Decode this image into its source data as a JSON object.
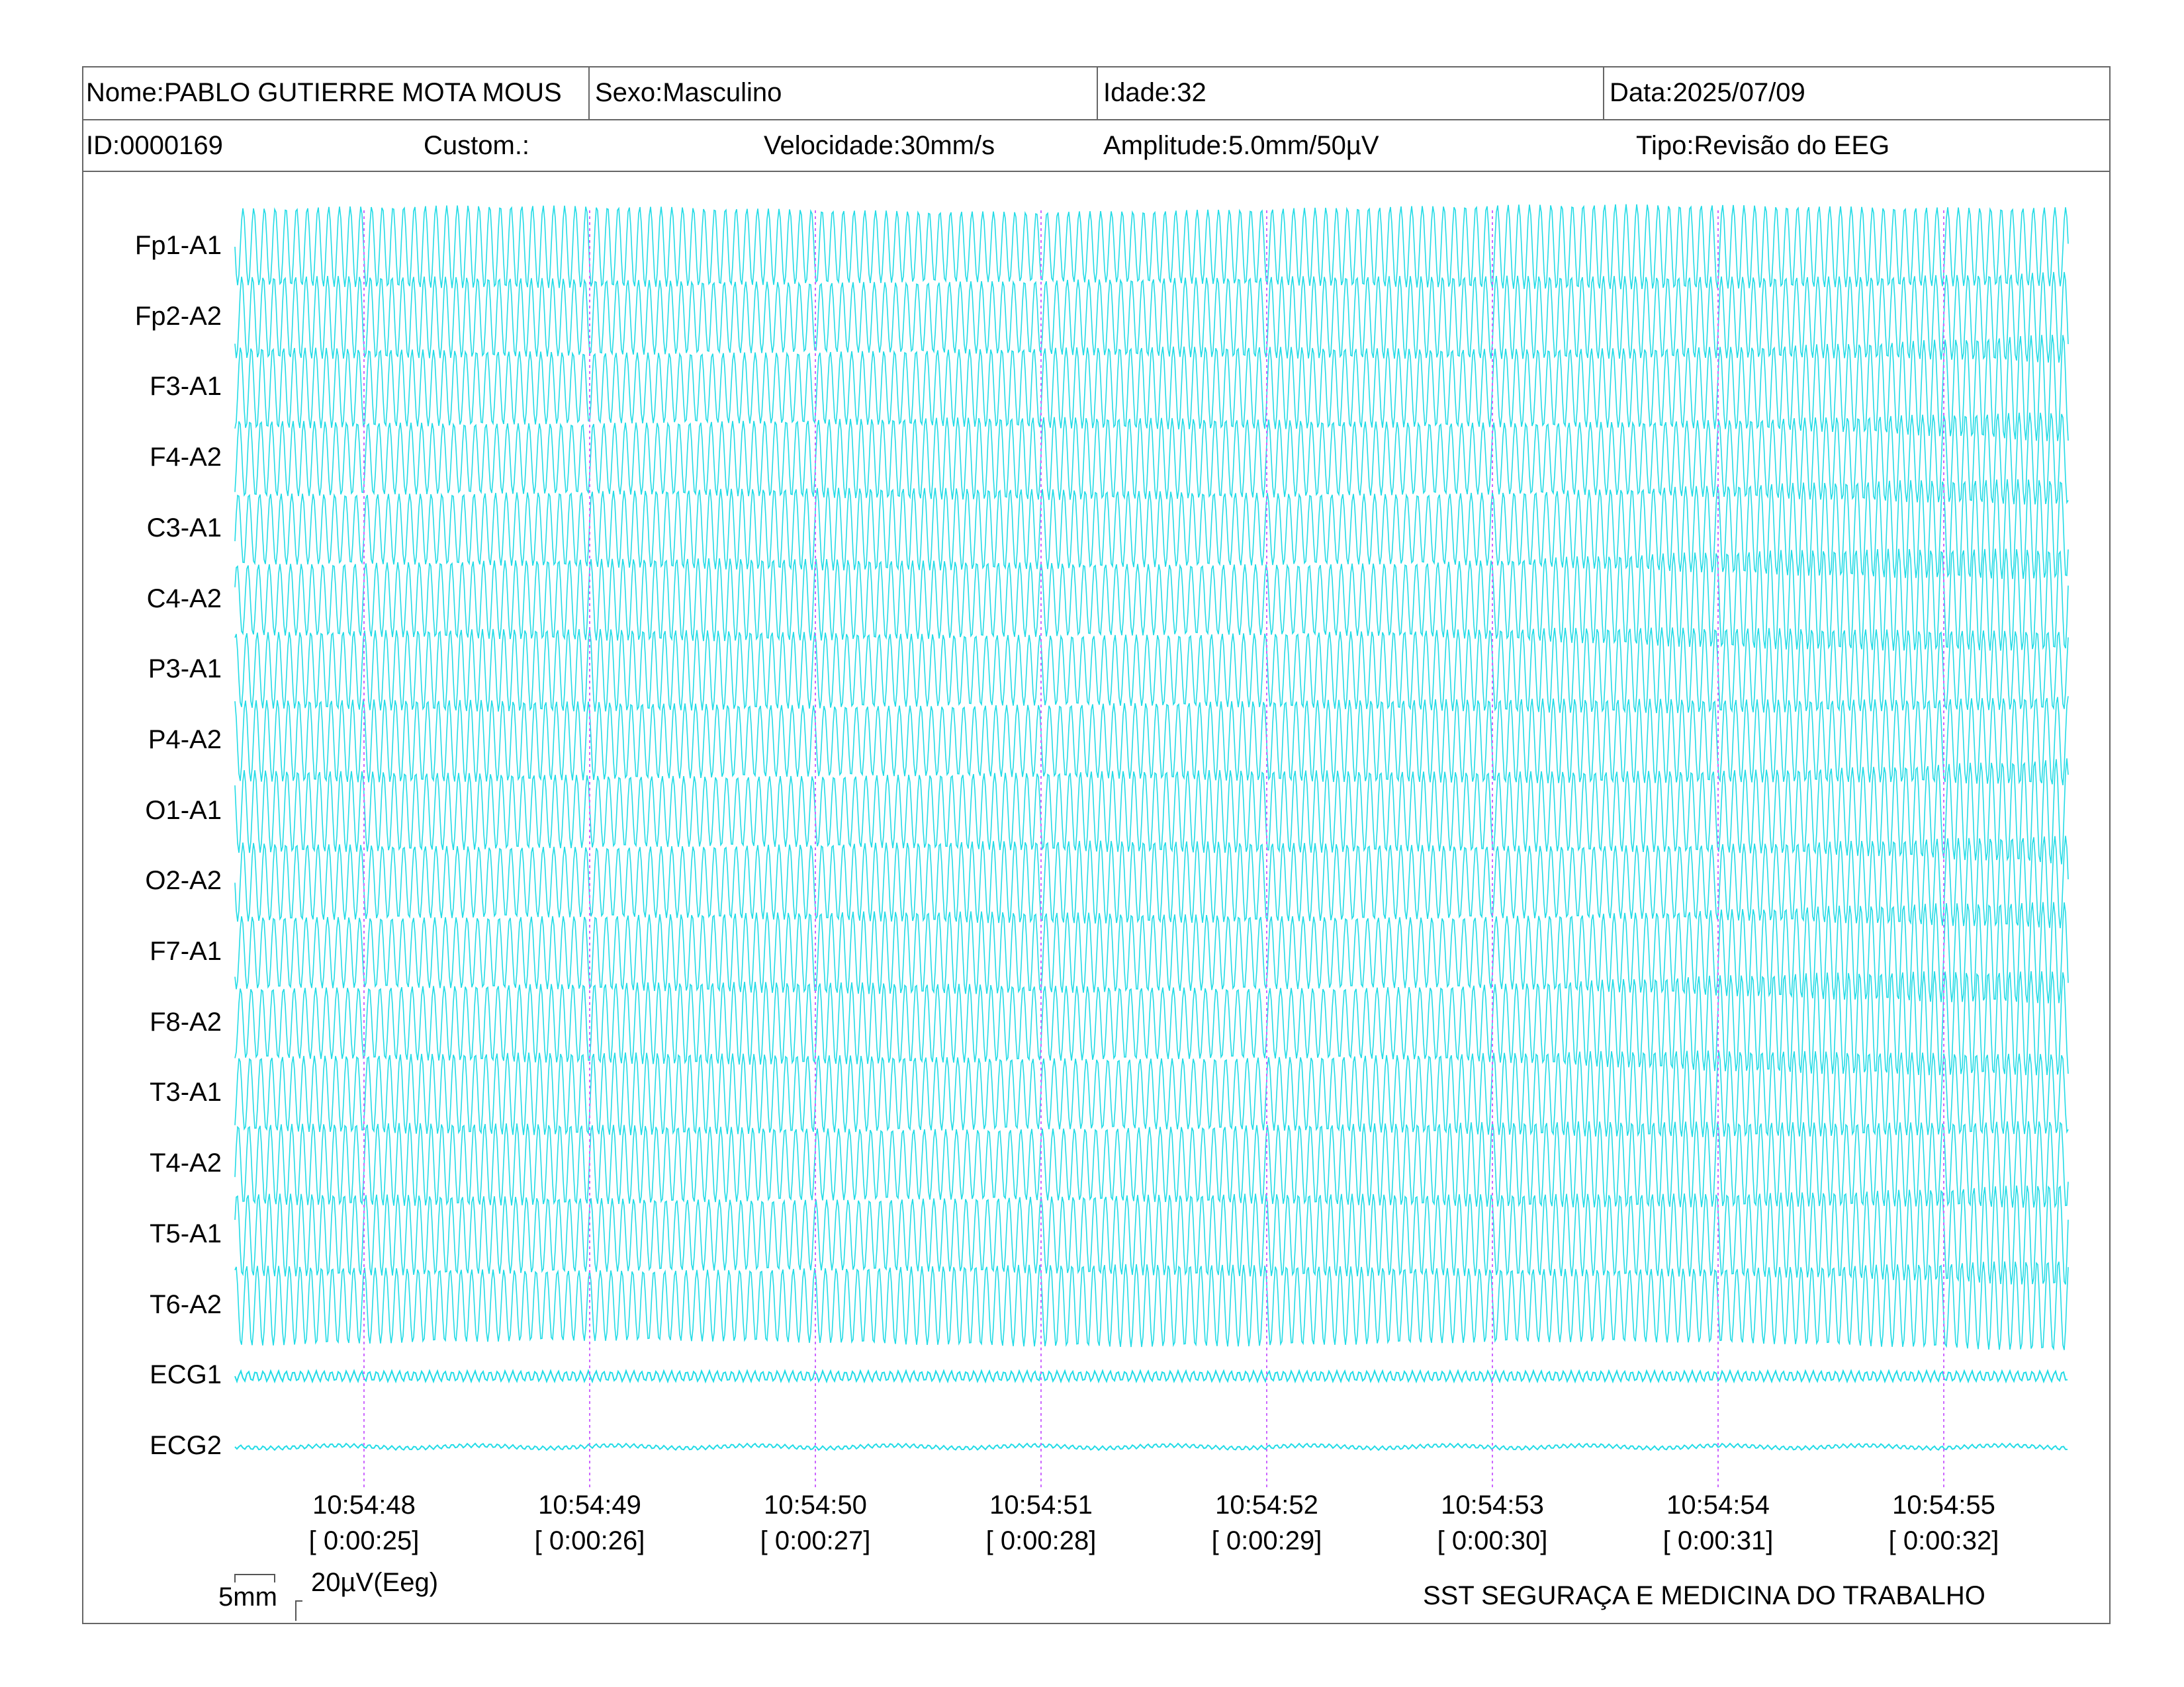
{
  "header": {
    "name": "Nome:PABLO GUTIERRE MOTA MOUS",
    "sex": "Sexo:Masculino",
    "age": "Idade:32",
    "date": "Data:2025/07/09",
    "id": "ID:0000169",
    "custom": "Custom.:",
    "speed": "Velocidade:30mm/s",
    "amplitude": "Amplitude:5.0mm/50µV",
    "type": "Tipo:Revisão do EEG"
  },
  "scale": {
    "time_label": "5mm",
    "amp_label": "20µV(Eeg)"
  },
  "footer": "SST SEGURAÇA E MEDICINA DO TRABALHO",
  "colors": {
    "trace": "#22dbe6",
    "time_marker": "#cc66ff",
    "border": "#666666"
  },
  "chart_data": {
    "type": "line",
    "title": "",
    "channels": [
      "Fp1-A1",
      "Fp2-A2",
      "F3-A1",
      "F4-A2",
      "C3-A1",
      "C4-A2",
      "P3-A1",
      "P4-A2",
      "O1-A1",
      "O2-A2",
      "F7-A1",
      "F8-A2",
      "T3-A1",
      "T4-A2",
      "T5-A1",
      "T6-A2",
      "ECG1",
      "ECG2"
    ],
    "time_ticks": [
      {
        "clock": "10:54:48",
        "elapsed": "[ 0:00:25]"
      },
      {
        "clock": "10:54:49",
        "elapsed": "[ 0:00:26]"
      },
      {
        "clock": "10:54:50",
        "elapsed": "[ 0:00:27]"
      },
      {
        "clock": "10:54:51",
        "elapsed": "[ 0:00:28]"
      },
      {
        "clock": "10:54:52",
        "elapsed": "[ 0:00:29]"
      },
      {
        "clock": "10:54:53",
        "elapsed": "[ 0:00:30]"
      },
      {
        "clock": "10:54:54",
        "elapsed": "[ 0:00:31]"
      },
      {
        "clock": "10:54:55",
        "elapsed": "[ 0:00:32]"
      }
    ],
    "speed_mm_per_s": 30,
    "sensitivity": "5.0mm/50µV",
    "grid": false
  }
}
